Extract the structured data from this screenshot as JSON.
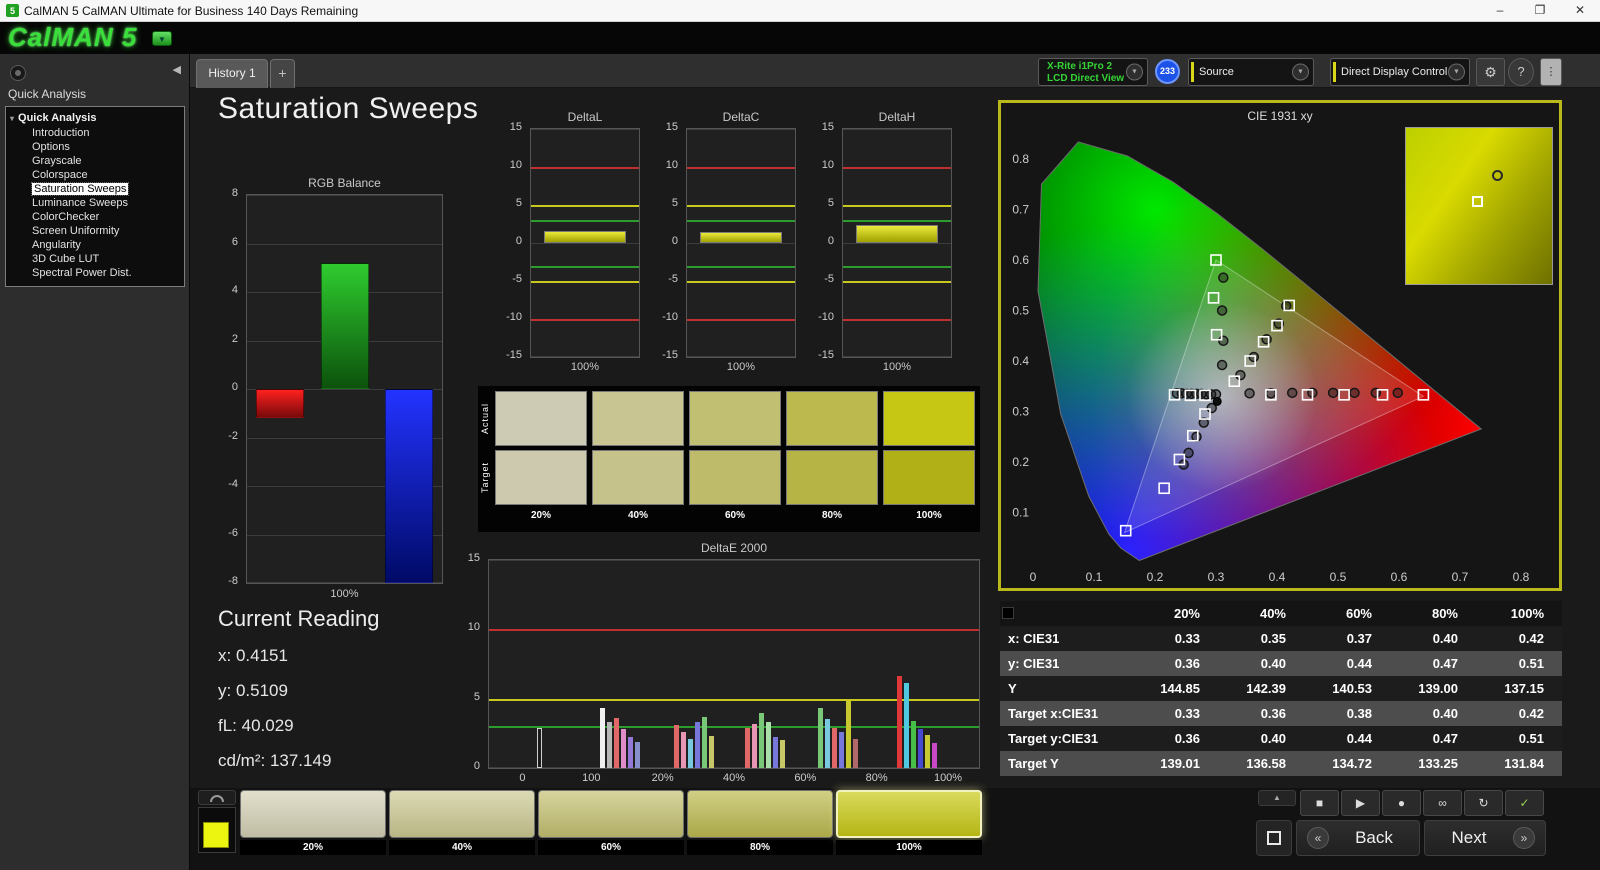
{
  "window": {
    "title": "CalMAN 5 CalMAN Ultimate for Business 140 Days Remaining",
    "controls": {
      "minimize": "–",
      "maximize": "❐",
      "close": "✕"
    }
  },
  "logo": {
    "text": "CalMAN 5",
    "dropdown_icon": "▼"
  },
  "tab_bar": {
    "tabs": [
      {
        "label": "History 1",
        "active": true
      },
      {
        "label": "+",
        "active": false
      }
    ]
  },
  "toolbar": {
    "meter_dropdown": {
      "line1": "X-Rite i1Pro 2",
      "line2": "LCD Direct View",
      "text_color": "#35d435"
    },
    "badge": "233",
    "source_dropdown": {
      "label": "Source"
    },
    "control_dropdown": {
      "label": "Direct Display Control"
    },
    "settings_icon": "⚙",
    "help_icon": "?",
    "dropdown_arrow_icon": "▼"
  },
  "sidebar": {
    "panel_title": "Quick Analysis",
    "tree": {
      "root": "Quick Analysis",
      "items": [
        {
          "label": "Introduction",
          "selected": false
        },
        {
          "label": "Options",
          "selected": false
        },
        {
          "label": "Grayscale",
          "selected": false
        },
        {
          "label": "Colorspace",
          "selected": false
        },
        {
          "label": "Saturation Sweeps",
          "selected": true
        },
        {
          "label": "Luminance Sweeps",
          "selected": false
        },
        {
          "label": "ColorChecker",
          "selected": false
        },
        {
          "label": "Screen Uniformity",
          "selected": false
        },
        {
          "label": "Angularity",
          "selected": false
        },
        {
          "label": "3D Cube LUT",
          "selected": false
        },
        {
          "label": "Spectral Power Dist.",
          "selected": false
        }
      ]
    }
  },
  "main": {
    "page_title": "Saturation Sweeps",
    "current_reading": {
      "heading": "Current Reading",
      "lines": [
        "x: 0.4151",
        "y: 0.5109",
        "fL: 40.029",
        "cd/m²: 137.149"
      ]
    }
  },
  "chart_data": {
    "rgb_balance": {
      "type": "bar",
      "title": "RGB Balance",
      "xlabel": "100%",
      "ylim": [
        -8,
        8
      ],
      "yticks": [
        8,
        6,
        4,
        2,
        0,
        -2,
        -4,
        -6,
        -8
      ],
      "categories": [
        "Red",
        "Green",
        "Blue"
      ],
      "values": [
        -1.2,
        5.2,
        -8.0
      ],
      "colors_bright": [
        "#ff2020",
        "#2fcc2f",
        "#2333ff"
      ],
      "colors_dark": [
        "#7a0a0a",
        "#0c520c",
        "#000a66"
      ]
    },
    "delta_l": {
      "type": "bar",
      "title": "DeltaL",
      "xlabel": "100%",
      "value": 1.6,
      "ylim": [
        -15,
        15
      ],
      "yticks": [
        15,
        10,
        5,
        0,
        -5,
        -10,
        -15
      ],
      "ref_lines": [
        {
          "y": 10,
          "color": "#c03030"
        },
        {
          "y": 5,
          "color": "#c8c81e"
        },
        {
          "y": 3,
          "color": "#2d9c2d"
        },
        {
          "y": -3,
          "color": "#2d9c2d"
        },
        {
          "y": -5,
          "color": "#c8c81e"
        },
        {
          "y": -10,
          "color": "#c03030"
        }
      ]
    },
    "delta_c": {
      "type": "bar",
      "title": "DeltaC",
      "xlabel": "100%",
      "value": 1.5,
      "ylim": [
        -15,
        15
      ],
      "yticks": [
        15,
        10,
        5,
        0,
        -5,
        -10,
        -15
      ],
      "ref_lines": [
        {
          "y": 10,
          "color": "#c03030"
        },
        {
          "y": 5,
          "color": "#c8c81e"
        },
        {
          "y": 3,
          "color": "#2d9c2d"
        },
        {
          "y": -3,
          "color": "#2d9c2d"
        },
        {
          "y": -5,
          "color": "#c8c81e"
        },
        {
          "y": -10,
          "color": "#c03030"
        }
      ]
    },
    "delta_h": {
      "type": "bar",
      "title": "DeltaH",
      "xlabel": "100%",
      "value": 2.4,
      "ylim": [
        -15,
        15
      ],
      "yticks": [
        15,
        10,
        5,
        0,
        -5,
        -10,
        -15
      ],
      "ref_lines": [
        {
          "y": 10,
          "color": "#c03030"
        },
        {
          "y": 5,
          "color": "#c8c81e"
        },
        {
          "y": 3,
          "color": "#2d9c2d"
        },
        {
          "y": -3,
          "color": "#2d9c2d"
        },
        {
          "y": -5,
          "color": "#c8c81e"
        },
        {
          "y": -10,
          "color": "#c03030"
        }
      ]
    },
    "delta_e": {
      "type": "bar",
      "title": "DeltaE 2000",
      "ylim": [
        0,
        15
      ],
      "yticks": [
        15,
        10,
        5,
        0
      ],
      "ref_lines": [
        {
          "y": 10,
          "color": "#c03030"
        },
        {
          "y": 5,
          "color": "#c8c81e"
        },
        {
          "y": 3,
          "color": "#2d9c2d"
        }
      ],
      "xtick_labels": [
        "0",
        "100",
        "20%",
        "40%",
        "60%",
        "80%",
        "100%"
      ],
      "xtick_pos": [
        0.07,
        0.21,
        0.355,
        0.5,
        0.645,
        0.79,
        0.935
      ],
      "groups": [
        {
          "x": 0.105,
          "bars": [
            {
              "color": "#1c1c1c",
              "value": 2.9,
              "border": true
            }
          ]
        },
        {
          "x": 0.27,
          "bars": [
            {
              "color": "#f0f0f0",
              "value": 4.3
            },
            {
              "color": "#b8b8b8",
              "value": 3.3
            },
            {
              "color": "#e06868",
              "value": 3.6
            },
            {
              "color": "#e08cc8",
              "value": 2.8
            },
            {
              "color": "#9478d8",
              "value": 2.2
            },
            {
              "color": "#8890cc",
              "value": 1.9
            }
          ]
        },
        {
          "x": 0.42,
          "bars": [
            {
              "color": "#e06868",
              "value": 3.1
            },
            {
              "color": "#e896b4",
              "value": 2.6
            },
            {
              "color": "#78c8e0",
              "value": 2.1
            },
            {
              "color": "#7878dc",
              "value": 3.3
            },
            {
              "color": "#78c878",
              "value": 3.7
            },
            {
              "color": "#c8c868",
              "value": 2.3
            }
          ]
        },
        {
          "x": 0.565,
          "bars": [
            {
              "color": "#e06868",
              "value": 2.9
            },
            {
              "color": "#e896b4",
              "value": 3.2
            },
            {
              "color": "#78c878",
              "value": 4.0
            },
            {
              "color": "#a8e0a8",
              "value": 3.3
            },
            {
              "color": "#7878dc",
              "value": 2.2
            },
            {
              "color": "#c8c868",
              "value": 2.0
            }
          ]
        },
        {
          "x": 0.715,
          "bars": [
            {
              "color": "#78c878",
              "value": 4.3
            },
            {
              "color": "#78c8e0",
              "value": 3.5
            },
            {
              "color": "#e06868",
              "value": 2.9
            },
            {
              "color": "#7878dc",
              "value": 2.6
            },
            {
              "color": "#c8c830",
              "value": 4.8
            },
            {
              "color": "#b06868",
              "value": 2.1
            }
          ]
        },
        {
          "x": 0.875,
          "bars": [
            {
              "color": "#e03838",
              "value": 6.6
            },
            {
              "color": "#50c8e0",
              "value": 6.1
            },
            {
              "color": "#48c048",
              "value": 3.4
            },
            {
              "color": "#4848d0",
              "value": 2.8
            },
            {
              "color": "#c8c830",
              "value": 2.4
            },
            {
              "color": "#c848c8",
              "value": 1.8
            }
          ]
        }
      ]
    },
    "cie": {
      "type": "scatter",
      "title": "CIE 1931 xy",
      "xticks": [
        "0",
        "0.1",
        "0.2",
        "0.3",
        "0.4",
        "0.5",
        "0.6",
        "0.7",
        "0.8"
      ],
      "yticks": [
        "0.1",
        "0.2",
        "0.3",
        "0.4",
        "0.5",
        "0.6",
        "0.7",
        "0.8"
      ],
      "locus": [
        [
          0.1741,
          0.005
        ],
        [
          0.144,
          0.0297
        ],
        [
          0.1241,
          0.0578
        ],
        [
          0.0913,
          0.1327
        ],
        [
          0.0454,
          0.295
        ],
        [
          0.0082,
          0.5384
        ],
        [
          0.0139,
          0.7502
        ],
        [
          0.0743,
          0.8338
        ],
        [
          0.1547,
          0.8059
        ],
        [
          0.2296,
          0.7543
        ],
        [
          0.3016,
          0.6923
        ],
        [
          0.3731,
          0.6245
        ],
        [
          0.4441,
          0.5547
        ],
        [
          0.5125,
          0.4866
        ],
        [
          0.5752,
          0.4242
        ],
        [
          0.627,
          0.3725
        ],
        [
          0.6915,
          0.3083
        ],
        [
          0.7347,
          0.2653
        ]
      ],
      "gamut": [
        [
          0.64,
          0.33
        ],
        [
          0.3,
          0.6
        ],
        [
          0.15,
          0.06
        ]
      ],
      "white_point": [
        0.302,
        0.32
      ],
      "targets": [
        [
          0.3,
          0.6
        ],
        [
          0.296,
          0.525
        ],
        [
          0.301,
          0.452
        ],
        [
          0.33,
          0.36
        ],
        [
          0.356,
          0.4
        ],
        [
          0.378,
          0.438
        ],
        [
          0.4,
          0.47
        ],
        [
          0.42,
          0.51
        ],
        [
          0.39,
          0.333
        ],
        [
          0.45,
          0.333
        ],
        [
          0.51,
          0.333
        ],
        [
          0.573,
          0.333
        ],
        [
          0.64,
          0.333
        ],
        [
          0.282,
          0.295
        ],
        [
          0.262,
          0.252
        ],
        [
          0.24,
          0.205
        ],
        [
          0.215,
          0.148
        ],
        [
          0.152,
          0.064
        ],
        [
          0.282,
          0.332
        ],
        [
          0.258,
          0.332
        ],
        [
          0.232,
          0.333
        ]
      ],
      "measurements": [
        [
          0.34,
          0.372
        ],
        [
          0.362,
          0.408
        ],
        [
          0.383,
          0.443
        ],
        [
          0.403,
          0.474
        ],
        [
          0.415,
          0.509
        ],
        [
          0.312,
          0.565
        ],
        [
          0.31,
          0.5
        ],
        [
          0.312,
          0.44
        ],
        [
          0.31,
          0.392
        ],
        [
          0.355,
          0.336
        ],
        [
          0.39,
          0.336
        ],
        [
          0.425,
          0.337
        ],
        [
          0.458,
          0.337
        ],
        [
          0.492,
          0.337
        ],
        [
          0.527,
          0.337
        ],
        [
          0.562,
          0.337
        ],
        [
          0.598,
          0.337
        ],
        [
          0.293,
          0.307
        ],
        [
          0.28,
          0.278
        ],
        [
          0.268,
          0.25
        ],
        [
          0.255,
          0.218
        ],
        [
          0.247,
          0.195
        ],
        [
          0.3,
          0.334
        ],
        [
          0.292,
          0.334
        ],
        [
          0.284,
          0.334
        ],
        [
          0.276,
          0.335
        ],
        [
          0.268,
          0.335
        ],
        [
          0.26,
          0.335
        ],
        [
          0.252,
          0.335
        ],
        [
          0.244,
          0.336
        ],
        [
          0.236,
          0.336
        ]
      ]
    }
  },
  "swatch_panel": {
    "row_labels": [
      "Actual",
      "Target"
    ],
    "columns": [
      "20%",
      "40%",
      "60%",
      "80%",
      "100%"
    ],
    "actual_colors": [
      "#cecbb4",
      "#c8c593",
      "#c1bf72",
      "#bcb94e",
      "#c6c714"
    ],
    "target_colors": [
      "#ccc9ae",
      "#c5c28b",
      "#bebb6b",
      "#b7b446",
      "#b1b016"
    ]
  },
  "data_table": {
    "columns": [
      "20%",
      "40%",
      "60%",
      "80%",
      "100%"
    ],
    "rows": [
      {
        "label": "x: CIE31",
        "values": [
          "0.33",
          "0.35",
          "0.37",
          "0.40",
          "0.42"
        ]
      },
      {
        "label": "y: CIE31",
        "values": [
          "0.36",
          "0.40",
          "0.44",
          "0.47",
          "0.51"
        ]
      },
      {
        "label": "Y",
        "values": [
          "144.85",
          "142.39",
          "140.53",
          "139.00",
          "137.15"
        ]
      },
      {
        "label": "Target x:CIE31",
        "values": [
          "0.33",
          "0.36",
          "0.38",
          "0.40",
          "0.42"
        ]
      },
      {
        "label": "Target y:CIE31",
        "values": [
          "0.36",
          "0.40",
          "0.44",
          "0.47",
          "0.51"
        ]
      },
      {
        "label": "Target Y",
        "values": [
          "139.01",
          "136.58",
          "134.72",
          "133.25",
          "131.84"
        ]
      }
    ]
  },
  "bottom_bar": {
    "current_color": "#ecf50f",
    "swatches": [
      {
        "label": "20%",
        "color": "#d5d2b6",
        "selected": false
      },
      {
        "label": "40%",
        "color": "#cdca94",
        "selected": false
      },
      {
        "label": "60%",
        "color": "#c5c272",
        "selected": false
      },
      {
        "label": "80%",
        "color": "#bdbb50",
        "selected": false
      },
      {
        "label": "100%",
        "color": "#c9ca16",
        "selected": true
      }
    ],
    "transport": [
      {
        "name": "stop",
        "icon": "■"
      },
      {
        "name": "play",
        "icon": "▶"
      },
      {
        "name": "record",
        "icon": "●"
      },
      {
        "name": "loop",
        "icon": "∞"
      },
      {
        "name": "refresh",
        "icon": "↻"
      },
      {
        "name": "apply",
        "icon": "✓"
      }
    ],
    "back_label": "Back",
    "next_label": "Next"
  }
}
